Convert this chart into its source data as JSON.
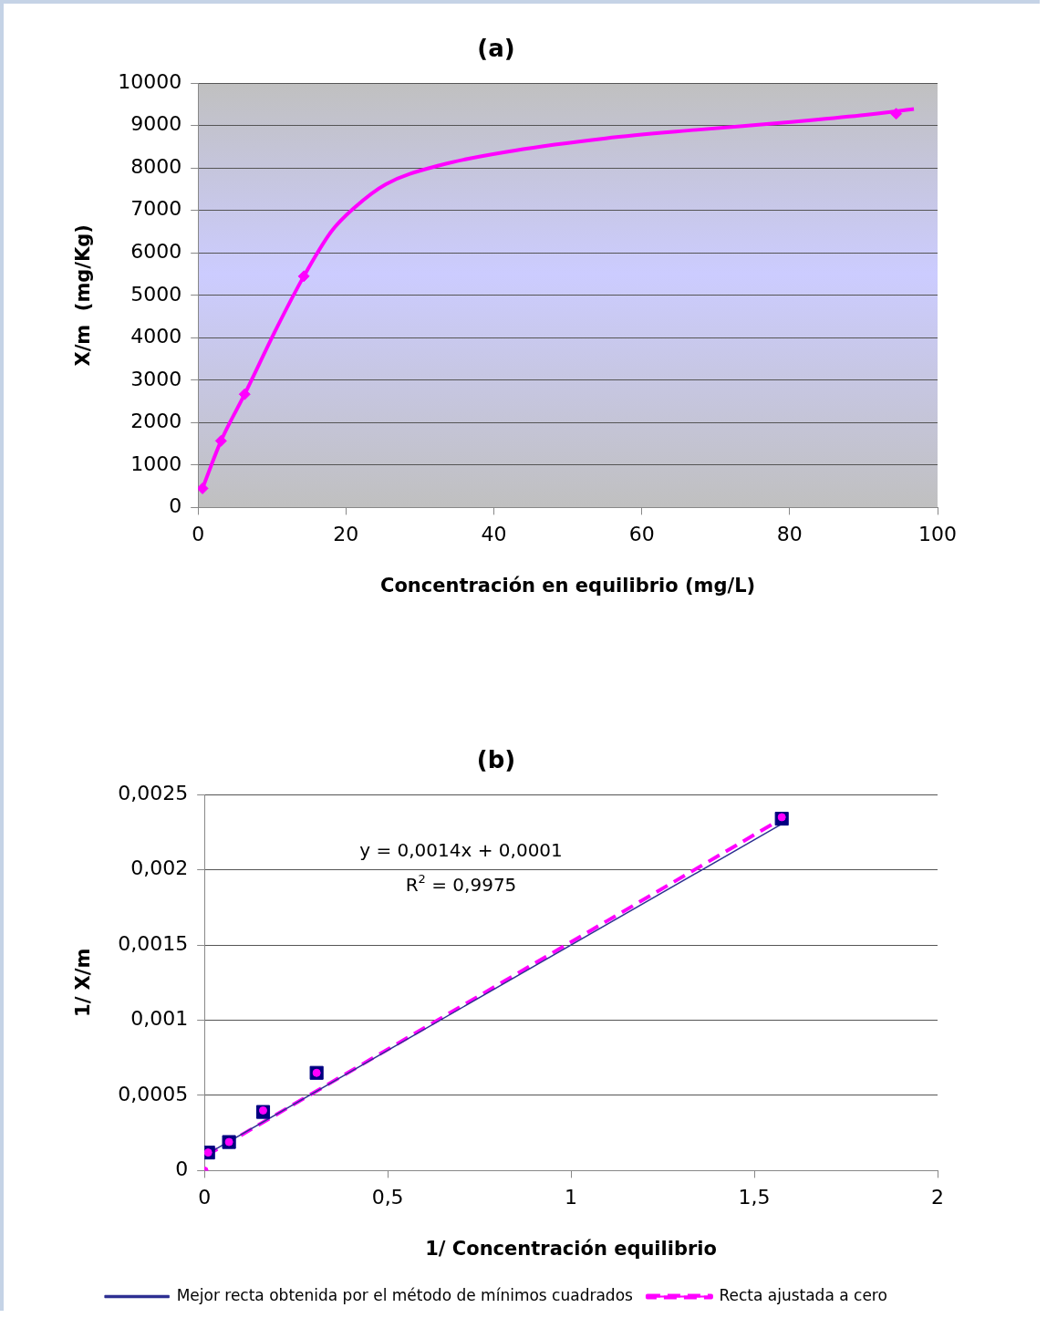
{
  "chart_data": [
    {
      "type": "line",
      "title": "(a)",
      "xlabel": "Concentración en equilibrio (mg/L)",
      "ylabel": "X/m  (mg/Kg)",
      "xlim": [
        0,
        100
      ],
      "xticks": [
        0,
        20,
        40,
        60,
        80,
        100
      ],
      "ylim": [
        0,
        10000
      ],
      "yticks": [
        0,
        1000,
        2000,
        3000,
        4000,
        5000,
        6000,
        7000,
        8000,
        9000,
        10000
      ],
      "grid": "y",
      "legend": false,
      "series": [
        {
          "color": "#ff00ff",
          "marker": "none",
          "x": [
            0.6,
            3.1,
            6.3,
            10.6,
            14.3,
            18.0,
            21.1,
            25.4,
            32.8,
            42.7,
            55.1,
            67.4,
            79.8,
            89.6,
            96.8
          ],
          "values": [
            450,
            1570,
            2670,
            4220,
            5450,
            6500,
            7060,
            7620,
            8070,
            8410,
            8700,
            8900,
            9080,
            9240,
            9390
          ]
        },
        {
          "type": "scatter",
          "color": "#ff00ff",
          "marker": "diamond",
          "x": [
            0.6,
            3.1,
            6.3,
            14.3,
            94.4
          ],
          "values": [
            450,
            1570,
            2670,
            5450,
            9280
          ]
        }
      ]
    },
    {
      "type": "scatter",
      "title": "(b)",
      "xlabel": "1/ Concentración equilibrio",
      "ylabel": "1/ X/m",
      "xlim": [
        0,
        2
      ],
      "xticks": [
        0,
        {
          "value": 0.5,
          "label": "0,5"
        },
        1,
        {
          "value": 1.5,
          "label": "1,5"
        },
        2
      ],
      "ylim": [
        0,
        0.0025
      ],
      "yticks": [
        0,
        {
          "value": 0.0005,
          "label": "0,0005"
        },
        {
          "value": 0.001,
          "label": "0,001"
        },
        {
          "value": 0.0015,
          "label": "0,0015"
        },
        {
          "value": 0.002,
          "label": "0,002"
        },
        {
          "value": 0.0025,
          "label": "0,0025"
        }
      ],
      "grid": "y",
      "legend": "bottom",
      "annotations": [
        "y = 0,0014x + 0,0001",
        "R$^{2}$ = 0,9975"
      ],
      "series": [
        {
          "color": "#000080",
          "marker": "square",
          "x": [
            0.01,
            0.067,
            0.16,
            0.306,
            1.575
          ],
          "values": [
            0.00012,
            0.00019,
            0.00039,
            0.00065,
            0.00234
          ]
        },
        {
          "color": "#ff00ff",
          "marker": "circle",
          "x": [
            0,
            0.01,
            0.067,
            0.16,
            0.306,
            1.575
          ],
          "values": [
            0,
            0.00012,
            0.00019,
            0.0004,
            0.00065,
            0.00235
          ]
        },
        {
          "type": "line",
          "name": "Mejor recta obtenida por el método de mínimos cuadrados",
          "color": "#2e3192",
          "marker": "none",
          "line_style": "solid",
          "x": [
            0.01,
            1.575
          ],
          "values": [
            0.000114,
            0.002305
          ]
        },
        {
          "type": "line",
          "name": "Recta ajustada a cero",
          "color": "#ff00ff",
          "marker": "none",
          "line_style": "dashed",
          "x": [
            0.005,
            1.575
          ],
          "values": [
            0.0001,
            0.00234
          ]
        }
      ]
    }
  ]
}
